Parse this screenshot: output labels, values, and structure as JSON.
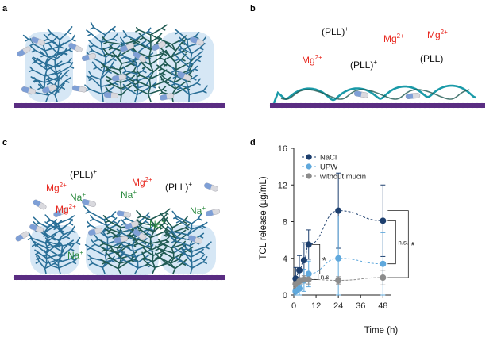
{
  "panels": {
    "a": {
      "letter": "a"
    },
    "b": {
      "letter": "b",
      "ions": [
        {
          "base": "(PLL)",
          "sup": "+",
          "kind": "pll"
        },
        {
          "base": "Mg",
          "sup": "2+",
          "kind": "mg"
        },
        {
          "base": "Mg",
          "sup": "2+",
          "kind": "mg"
        },
        {
          "base": "Mg",
          "sup": "2+",
          "kind": "mg"
        },
        {
          "base": "(PLL)",
          "sup": "+",
          "kind": "pll"
        },
        {
          "base": "(PLL)",
          "sup": "+",
          "kind": "pll"
        }
      ]
    },
    "c": {
      "letter": "c",
      "ions": [
        {
          "base": "(PLL)",
          "sup": "+",
          "kind": "pll"
        },
        {
          "base": "Mg",
          "sup": "2+",
          "kind": "mg"
        },
        {
          "base": "Mg",
          "sup": "2+",
          "kind": "mg"
        },
        {
          "base": "(PLL)",
          "sup": "+",
          "kind": "pll"
        },
        {
          "base": "Na",
          "sup": "+",
          "kind": "na"
        },
        {
          "base": "Na",
          "sup": "+",
          "kind": "na"
        },
        {
          "base": "Mg",
          "sup": "2+",
          "kind": "mg"
        },
        {
          "base": "Na",
          "sup": "+",
          "kind": "na"
        },
        {
          "base": "Na",
          "sup": "+",
          "kind": "na"
        },
        {
          "base": "Na",
          "sup": "+",
          "kind": "na"
        }
      ]
    },
    "d": {
      "letter": "d"
    }
  },
  "colors": {
    "substrate": "#5a2d82",
    "mucin_blob": "#cfe3f3",
    "mucin_fiber": "#2a6f97",
    "mucin_fiber_dark": "#1f5a52",
    "pll_coil": "#1a9aa8",
    "capsule_blue": "#7e9fd6",
    "capsule_gray": "#d9d9de",
    "nacl": "#1d3f6e",
    "upw": "#5fa8dc",
    "without_mucin": "#8c8c8c"
  },
  "chart_data": {
    "type": "scatter",
    "xlabel": "Time (h)",
    "ylabel": "TCL release (µg/mL)",
    "xlim": [
      0,
      50
    ],
    "ylim": [
      0,
      16
    ],
    "xticks": [
      0,
      12,
      24,
      36,
      48
    ],
    "yticks": [
      0,
      4,
      8,
      12,
      16
    ],
    "grid": false,
    "legend_position": "top-left",
    "series": [
      {
        "name": "NaCl",
        "color": "#1d3f6e",
        "x": [
          1,
          3,
          5.5,
          8,
          24,
          48
        ],
        "y": [
          1.8,
          2.7,
          3.8,
          5.5,
          9.2,
          8.1
        ],
        "err": [
          1.2,
          1.6,
          1.9,
          1.6,
          4.1,
          3.9
        ]
      },
      {
        "name": "UPW",
        "color": "#5fa8dc",
        "x": [
          1,
          3,
          5.5,
          8,
          24,
          48
        ],
        "y": [
          0.4,
          0.7,
          1.6,
          2.3,
          4.0,
          3.4
        ],
        "err": [
          0.6,
          0.7,
          1.2,
          1.4,
          4.6,
          3.4
        ]
      },
      {
        "name": "without mucin",
        "color": "#8c8c8c",
        "x": [
          1,
          3,
          5.5,
          8,
          24,
          48
        ],
        "y": [
          1.2,
          1.5,
          1.7,
          1.7,
          1.6,
          1.9
        ],
        "err": [
          0.4,
          0.4,
          0.4,
          0.5,
          0.4,
          0.8
        ]
      }
    ],
    "annotations": [
      {
        "text": "*",
        "between": [
          "NaCl",
          "UPW"
        ],
        "at_x": 8
      },
      {
        "text": "n.s.",
        "between": [
          "UPW",
          "without mucin"
        ],
        "at_x": 8
      },
      {
        "text": "n.s.",
        "between": [
          "NaCl",
          "UPW"
        ],
        "at_x": 48
      },
      {
        "text": "*",
        "between": [
          "NaCl",
          "without mucin"
        ],
        "at_x": 48
      }
    ]
  }
}
